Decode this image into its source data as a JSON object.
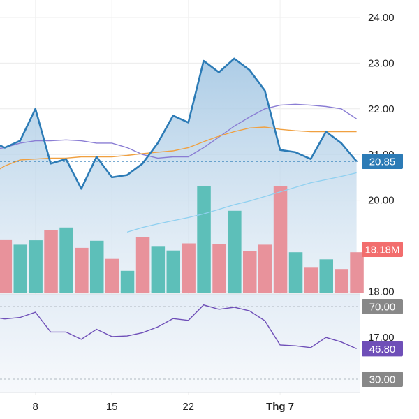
{
  "chart_data": [
    {
      "type": "line",
      "panel": "price",
      "y_ticks": [
        "24.00",
        "23.00",
        "22.00",
        "21.00",
        "20.00",
        "18.00",
        "17.00"
      ],
      "y_values": [
        24,
        23,
        22,
        21,
        20,
        18,
        17
      ],
      "ylim": [
        17.8,
        24.4
      ],
      "x_ticks": [
        "8",
        "15",
        "22",
        "Thg 7"
      ],
      "x_tick_index": [
        3,
        8,
        13,
        19
      ],
      "series": [
        {
          "values": [
            21.3,
            21.15,
            21.3,
            22.0,
            20.8,
            20.9,
            20.25,
            20.95,
            20.5,
            20.55,
            20.8,
            21.25,
            21.85,
            21.7,
            23.05,
            22.8,
            23.1,
            22.85,
            22.4,
            21.1,
            21.05,
            20.9,
            21.5,
            21.25,
            20.85
          ],
          "color": "#2c7bb6",
          "area": true
        },
        {
          "values": [
            21.1,
            21.15,
            21.25,
            21.3,
            21.3,
            21.32,
            21.3,
            21.25,
            21.25,
            21.15,
            21.0,
            20.92,
            20.95,
            20.95,
            21.15,
            21.38,
            21.62,
            21.82,
            22.0,
            22.08,
            22.1,
            22.08,
            22.05,
            22.0,
            21.78
          ],
          "color": "#8a7dd4"
        },
        {
          "values": [
            20.55,
            20.75,
            20.88,
            20.9,
            20.92,
            20.92,
            20.95,
            20.95,
            20.95,
            20.98,
            21.02,
            21.05,
            21.08,
            21.15,
            21.28,
            21.4,
            21.5,
            21.58,
            21.6,
            21.55,
            21.52,
            21.5,
            21.5,
            21.5,
            21.5
          ],
          "color": "#f0a040"
        },
        {
          "values": [
            null,
            null,
            null,
            null,
            null,
            null,
            null,
            null,
            null,
            19.3,
            19.4,
            19.48,
            19.55,
            19.62,
            19.7,
            19.8,
            19.9,
            19.98,
            20.08,
            20.18,
            20.28,
            20.38,
            20.45,
            20.52,
            20.6
          ],
          "color": "#8fd0f0"
        }
      ],
      "last_price": "20.85",
      "last_price_value": 20.85
    },
    {
      "type": "bar",
      "panel": "volume",
      "values": [
        12.2,
        11.0,
        12.0,
        14.3,
        14.9,
        10.3,
        11.9,
        7.8,
        5.1,
        12.8,
        10.7,
        9.7,
        11.3,
        24.3,
        11.1,
        18.7,
        9.5,
        11.0,
        24.3,
        9.3,
        5.8,
        7.7,
        5.5,
        9.3
      ],
      "colors": [
        "#e8929b",
        "#5dbfb9",
        "#5dbfb9",
        "#e8929b",
        "#5dbfb9",
        "#e8929b",
        "#5dbfb9",
        "#e8929b",
        "#5dbfb9",
        "#e8929b",
        "#5dbfb9",
        "#5dbfb9",
        "#e8929b",
        "#5dbfb9",
        "#e8929b",
        "#5dbfb9",
        "#e8929b",
        "#e8929b",
        "#e8929b",
        "#5dbfb9",
        "#e8929b",
        "#5dbfb9",
        "#e8929b",
        "#e8929b"
      ],
      "last_volume_label": "18.18M",
      "last_volume_color": "#f26d6d"
    },
    {
      "type": "line",
      "panel": "oscillator",
      "ylim": [
        20,
        80
      ],
      "levels": [
        {
          "value": 70,
          "label": "70.00",
          "color": "#888888"
        },
        {
          "value": 30,
          "label": "30.00",
          "color": "#888888"
        }
      ],
      "series": [
        {
          "values": [
            64.5,
            63.2,
            64.0,
            66.9,
            56.0,
            56.0,
            52.0,
            57.5,
            53.5,
            53.8,
            55.6,
            58.8,
            63.4,
            62.4,
            70.9,
            68.5,
            69.6,
            67.6,
            62.2,
            48.9,
            48.4,
            47.4,
            53.0,
            50.5,
            46.8
          ],
          "color": "#6f4fb8"
        }
      ],
      "last_value": "46.80",
      "last_value_color": "#6f4fb8"
    }
  ]
}
